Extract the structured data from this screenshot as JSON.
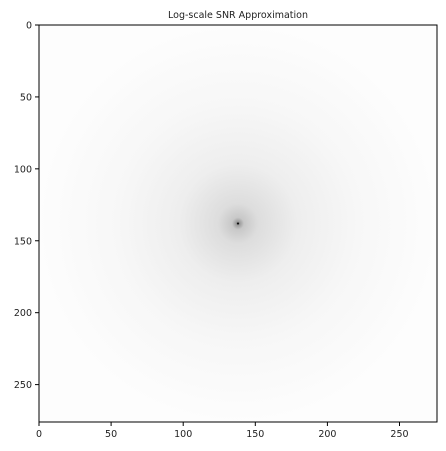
{
  "chart_data": {
    "type": "heatmap",
    "title": "Log-scale SNR Approximation",
    "xlabel": "",
    "ylabel": "",
    "x_range": [
      0,
      276
    ],
    "y_range": [
      0,
      276
    ],
    "y_inverted": true,
    "x_ticks": [
      0,
      50,
      100,
      150,
      200,
      250
    ],
    "y_ticks": [
      0,
      50,
      100,
      150,
      200,
      250
    ],
    "grid": false,
    "colormap": "gray (white to black)",
    "description_values": {
      "peak_center": [
        138,
        138
      ],
      "peak_value_color": "#000000",
      "background_color": "#ffffff"
    }
  }
}
